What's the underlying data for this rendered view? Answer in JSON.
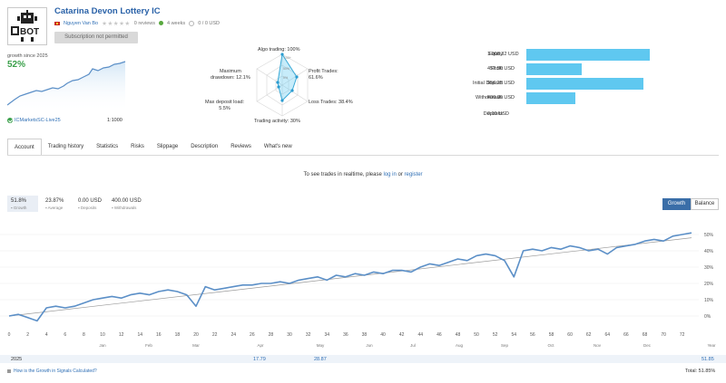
{
  "header": {
    "title": "Catarina Devon Lottery IC",
    "author": "Nguyen Van Bo",
    "reviews": "0 reviews",
    "weeks": "4 weeks",
    "copiers": "0 / 0 USD",
    "subscribe_label": "Subscription not permitted",
    "avatar_text": "BOT"
  },
  "growth_mini": {
    "label": "growth since 2025",
    "value": "52%",
    "broker": "ICMarketsSC-Live25",
    "leverage": "1:1000"
  },
  "radar": {
    "algo": "Algo trading: 100%",
    "profit": "Profit Trades:",
    "profit_val": "61.6%",
    "loss": "Loss Trades: 38.4%",
    "trading": "Trading activity: 30%",
    "deposit": "Max deposit load:",
    "deposit_val": "5.5%",
    "dd": "Maximum",
    "dd2": "drawdown: 12.1%",
    "scale_100": "100+",
    "scale_50": "50%",
    "scale_0": "0%"
  },
  "stats": [
    {
      "label": "Equity",
      "value": "1 008.32 USD",
      "fraction": 1.0
    },
    {
      "label": "Profit",
      "value": "452.50 USD",
      "fraction": 0.448
    },
    {
      "label": "Initial Deposit",
      "value": "956.25 USD",
      "fraction": 0.948
    },
    {
      "label": "Withdrawals",
      "value": "400.00 USD",
      "fraction": 0.397
    },
    {
      "label": "Deposits",
      "value": "0.00 USD",
      "fraction": 0.0
    }
  ],
  "tabs": [
    "Account",
    "Trading history",
    "Statistics",
    "Risks",
    "Slippage",
    "Description",
    "Reviews",
    "What's new"
  ],
  "login_msg": {
    "pre": "To see trades in realtime, please",
    "login": "log in",
    "or": "or",
    "register": "register"
  },
  "summary": [
    {
      "value": "51.8%",
      "label": "Growth"
    },
    {
      "value": "23.87%",
      "label": "Average"
    },
    {
      "value": "0.00 USD",
      "label": "Deposits"
    },
    {
      "value": "400.00 USD",
      "label": "Withdrawals"
    }
  ],
  "toggle": {
    "growth": "Growth",
    "balance": "Balance"
  },
  "chart_data": {
    "type": "line",
    "x_ticks": [
      "0",
      "2",
      "4",
      "6",
      "8",
      "10",
      "12",
      "14",
      "16",
      "18",
      "20",
      "22",
      "24",
      "26",
      "28",
      "30",
      "32",
      "34",
      "36",
      "38",
      "40",
      "42",
      "44",
      "46",
      "48",
      "50",
      "52",
      "54",
      "56",
      "58",
      "60",
      "62",
      "64",
      "66",
      "68",
      "70",
      "72"
    ],
    "months": [
      "Jan",
      "Feb",
      "Mar",
      "Apr",
      "May",
      "Jun",
      "Jul",
      "Aug",
      "Sep",
      "Oct",
      "Nov",
      "Dec",
      "Year"
    ],
    "y_ticks": [
      "50%",
      "40%",
      "30%",
      "20%",
      "10%",
      "0%"
    ],
    "ylim": [
      -5,
      55
    ],
    "xlim": [
      0,
      73
    ],
    "series": [
      {
        "values": [
          [
            0,
            0
          ],
          [
            1,
            1
          ],
          [
            2,
            -1
          ],
          [
            3,
            -3
          ],
          [
            4,
            5
          ],
          [
            5,
            6
          ],
          [
            6,
            5
          ],
          [
            7,
            6
          ],
          [
            8,
            8
          ],
          [
            9,
            10
          ],
          [
            10,
            11
          ],
          [
            11,
            12
          ],
          [
            12,
            11
          ],
          [
            13,
            13
          ],
          [
            14,
            14
          ],
          [
            15,
            13
          ],
          [
            16,
            15
          ],
          [
            17,
            16
          ],
          [
            18,
            15
          ],
          [
            19,
            13
          ],
          [
            20,
            6
          ],
          [
            21,
            18
          ],
          [
            22,
            16
          ],
          [
            23,
            17
          ],
          [
            24,
            18
          ],
          [
            25,
            19
          ],
          [
            26,
            19
          ],
          [
            27,
            20
          ],
          [
            28,
            20
          ],
          [
            29,
            21
          ],
          [
            30,
            20
          ],
          [
            31,
            22
          ],
          [
            32,
            23
          ],
          [
            33,
            24
          ],
          [
            34,
            22
          ],
          [
            35,
            25
          ],
          [
            36,
            24
          ],
          [
            37,
            26
          ],
          [
            38,
            25
          ],
          [
            39,
            27
          ],
          [
            40,
            26
          ],
          [
            41,
            28
          ],
          [
            42,
            28
          ],
          [
            43,
            27
          ],
          [
            44,
            30
          ],
          [
            45,
            32
          ],
          [
            46,
            31
          ],
          [
            47,
            33
          ],
          [
            48,
            35
          ],
          [
            49,
            34
          ],
          [
            50,
            37
          ],
          [
            51,
            38
          ],
          [
            52,
            37
          ],
          [
            53,
            34
          ],
          [
            54,
            24
          ],
          [
            55,
            40
          ],
          [
            56,
            41
          ],
          [
            57,
            40
          ],
          [
            58,
            42
          ],
          [
            59,
            41
          ],
          [
            60,
            43
          ],
          [
            61,
            42
          ],
          [
            62,
            40
          ],
          [
            63,
            41
          ],
          [
            64,
            38
          ],
          [
            65,
            42
          ],
          [
            66,
            43
          ],
          [
            67,
            44
          ],
          [
            68,
            46
          ],
          [
            69,
            47
          ],
          [
            70,
            46
          ],
          [
            71,
            49
          ],
          [
            72,
            50
          ],
          [
            73,
            51
          ]
        ]
      },
      {
        "values": [
          [
            0,
            0
          ],
          [
            73,
            48
          ]
        ]
      }
    ]
  },
  "footer": {
    "year": "2025",
    "v1": "17.79",
    "v2": "28.87",
    "year_total": "51.85",
    "how": "How is the Growth in Signals Calculated?",
    "total": "Total: 51.85%"
  },
  "colors": {
    "accent": "#3a6ea8",
    "bar": "#5fc8f0",
    "line": "#5b8fc7",
    "growth": "#3aa04a"
  }
}
